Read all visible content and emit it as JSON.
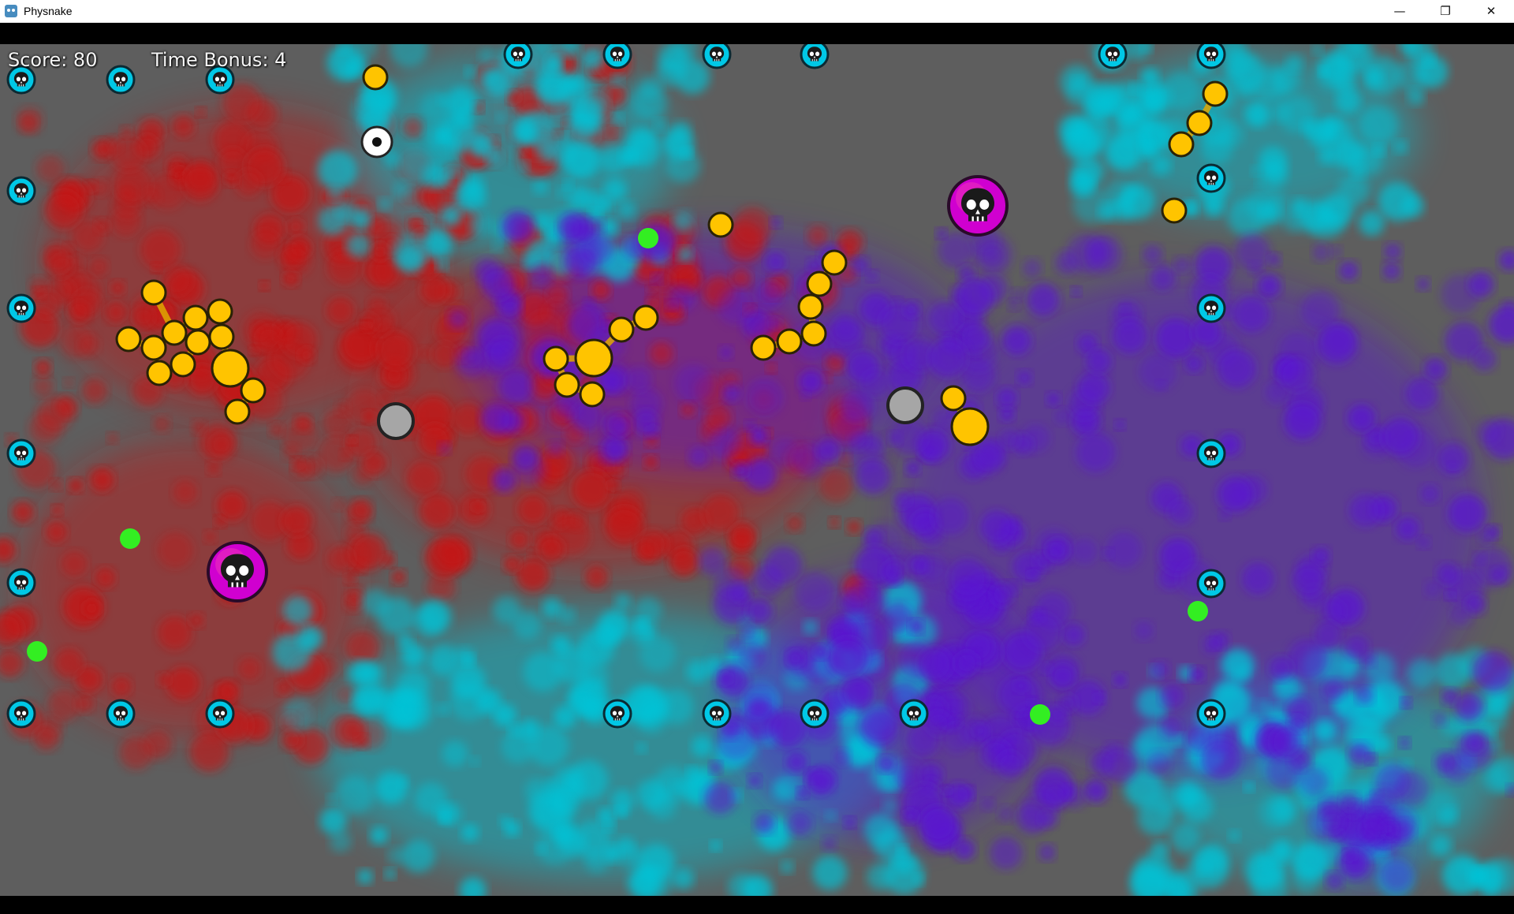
{
  "window": {
    "title": "Physnake",
    "app_icon": "godot-engine-icon",
    "controls": {
      "minimize": "—",
      "restore": "❐",
      "close": "✕"
    }
  },
  "hud": {
    "score": "Score: 80",
    "time_bonus": "Time Bonus: 4"
  },
  "colors": {
    "background": "#5e5e5e",
    "paint_red": "#c41414",
    "paint_cyan": "#00c4d8",
    "paint_purple": "#5a14d0",
    "skull_cyan": "#00c8e6",
    "skull_magenta": "#d000d0",
    "pellet_yellow": "#ffc400",
    "food_green": "#33ee22",
    "gray_ball": "#a6a6a6",
    "outline": "#232323"
  },
  "entities": {
    "border_skulls": "skull-icon",
    "enemy_skulls": "skull-icon",
    "player_head": "eye-icon"
  }
}
